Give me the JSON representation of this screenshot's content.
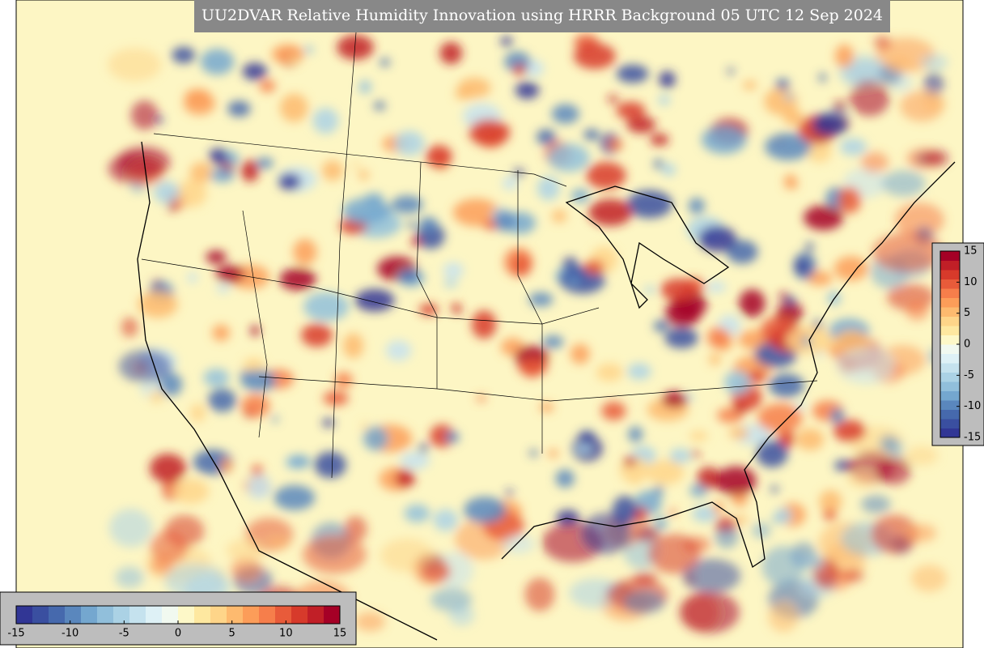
{
  "title": "UU2DVAR Relative Humidity Innovation using HRRR Background 05 UTC 12 Sep 2024",
  "colorbar": {
    "lim": [
      -15,
      15
    ],
    "ticks": [
      -15,
      -10,
      -5,
      0,
      5,
      10,
      15
    ],
    "colors": [
      "#313695",
      "#3a4fa0",
      "#4669ad",
      "#5a87bd",
      "#74a7cf",
      "#91bfdb",
      "#abd2e5",
      "#c5e2ee",
      "#def1f6",
      "#f1f9f0",
      "#fdf8c8",
      "#fee8a0",
      "#fed589",
      "#fdba6f",
      "#fc9d59",
      "#f67e4b",
      "#e85b3a",
      "#d73a2b",
      "#c11f27",
      "#a50026"
    ]
  }
}
